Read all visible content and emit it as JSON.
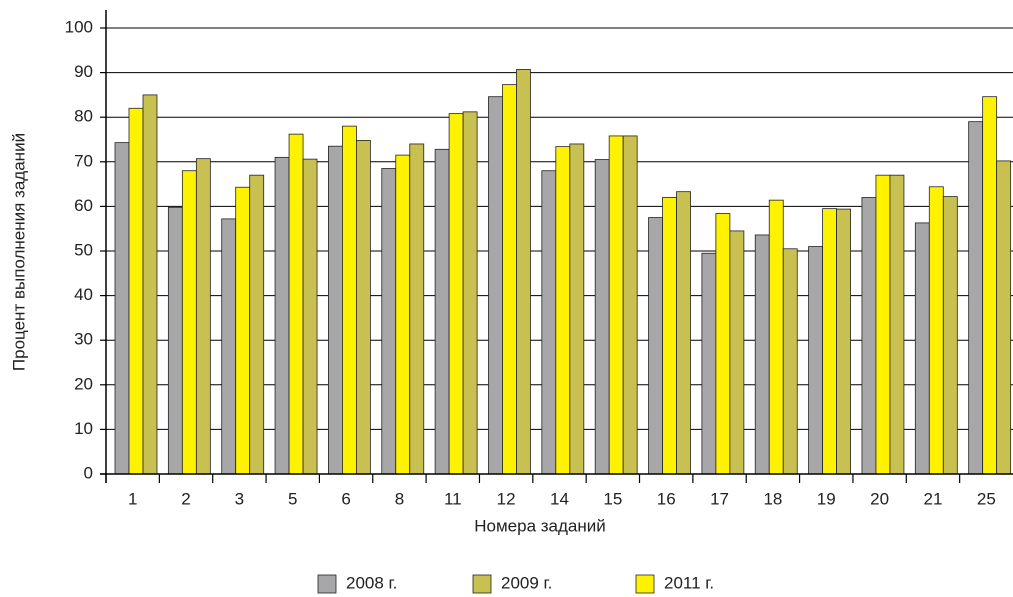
{
  "chart_data": {
    "type": "bar",
    "x_label": "Номера заданий",
    "y_label": "Процент выполнения заданий",
    "categories": [
      "1",
      "2",
      "3",
      "5",
      "6",
      "8",
      "11",
      "12",
      "14",
      "15",
      "16",
      "17",
      "18",
      "19",
      "20",
      "21",
      "25"
    ],
    "series": [
      {
        "name": "2008 г.",
        "color": "#a7a7a9",
        "values": [
          74.3,
          59.8,
          57.2,
          71,
          73.5,
          68.5,
          72.8,
          84.6,
          68,
          70.5,
          57.5,
          49.5,
          53.6,
          51,
          62,
          56.3,
          79
        ]
      },
      {
        "name": "2009 г.",
        "color": "#c9c052",
        "values": [
          85,
          70.7,
          67,
          70.6,
          74.8,
          74,
          81.2,
          90.7,
          74,
          75.8,
          63.3,
          54.5,
          50.5,
          59.4,
          67,
          62.2,
          70.2
        ]
      },
      {
        "name": "2011 г.",
        "color": "#fff200",
        "values": [
          82,
          68,
          64.3,
          76.2,
          78,
          71.5,
          80.8,
          87.3,
          73.4,
          75.8,
          62,
          58.4,
          61.4,
          59.5,
          67,
          64.4,
          84.6
        ]
      }
    ],
    "ylim": [
      0,
      100
    ],
    "yticks": [
      0,
      10,
      20,
      30,
      40,
      50,
      60,
      70,
      80,
      90,
      100
    ],
    "grid": true,
    "legend": "bottom"
  }
}
